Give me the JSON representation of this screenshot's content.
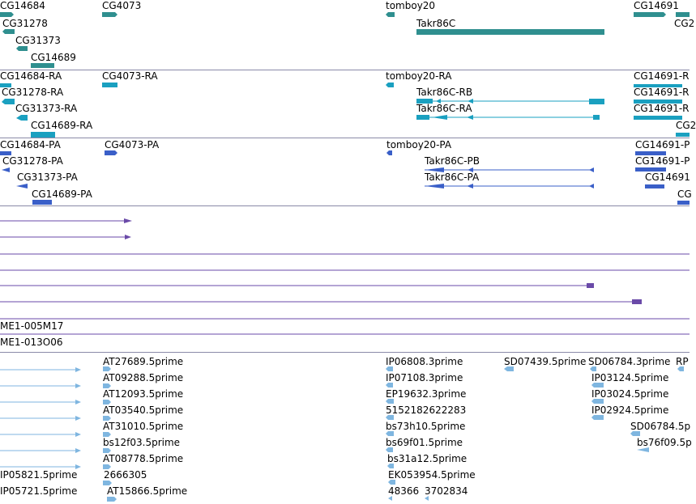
{
  "colors": {
    "gene": "#2f8f8f",
    "transcript": "#1aa0c0",
    "protein": "#3a5fc8",
    "alignment": "#6a4aa8",
    "est": "#7fb6e0",
    "divider": "#8a8aa8"
  },
  "tracks": {
    "gene": {
      "labels": [
        "CG14684",
        "CG4073",
        "tomboy20",
        "CG14691",
        "CG31278",
        "Takr86C",
        "CG2",
        "CG31373",
        "CG14689"
      ]
    },
    "transcript": {
      "labels": [
        "CG14684-RA",
        "CG4073-RA",
        "tomboy20-RA",
        "CG14691-R",
        "CG31278-RA",
        "Takr86C-RB",
        "CG14691-R",
        "CG31373-RA",
        "Takr86C-RA",
        "CG14691-R",
        "CG14689-RA",
        "CG2"
      ]
    },
    "protein": {
      "labels": [
        "CG14684-PA",
        "CG4073-PA",
        "tomboy20-PA",
        "CG14691-P",
        "CG31278-PA",
        "Takr86C-PB",
        "CG14691-P",
        "CG31373-PA",
        "Takr86C-PA",
        "CG14691",
        "CG14689-PA",
        "CG"
      ]
    },
    "alignment": {
      "labels": [
        "ME1-005M17",
        "ME1-013O06"
      ]
    },
    "est": {
      "labels": [
        "AT27689.5prime",
        "IP06808.3prime",
        "SD07439.5prime",
        "SD06784.3prime",
        "RP",
        "AT09288.5prime",
        "IP07108.3prime",
        "IP03124.5prime",
        "AT12093.5prime",
        "EP19632.3prime",
        "IP03024.5prime",
        "AT03540.5prime",
        "5152182622283",
        "IP02924.5prime",
        "AT31010.5prime",
        "bs73h10.5prime",
        "SD06784.5p",
        "bs12f03.5prime",
        "bs69f01.5prime",
        "bs76f09.5p",
        "AT08778.5prime",
        "bs31a12.5prime",
        "IP05821.5prime",
        "2666305",
        "EK053954.5prime",
        "IP05721.5prime",
        "AT15866.5prime",
        "48366",
        "3702834"
      ]
    }
  }
}
